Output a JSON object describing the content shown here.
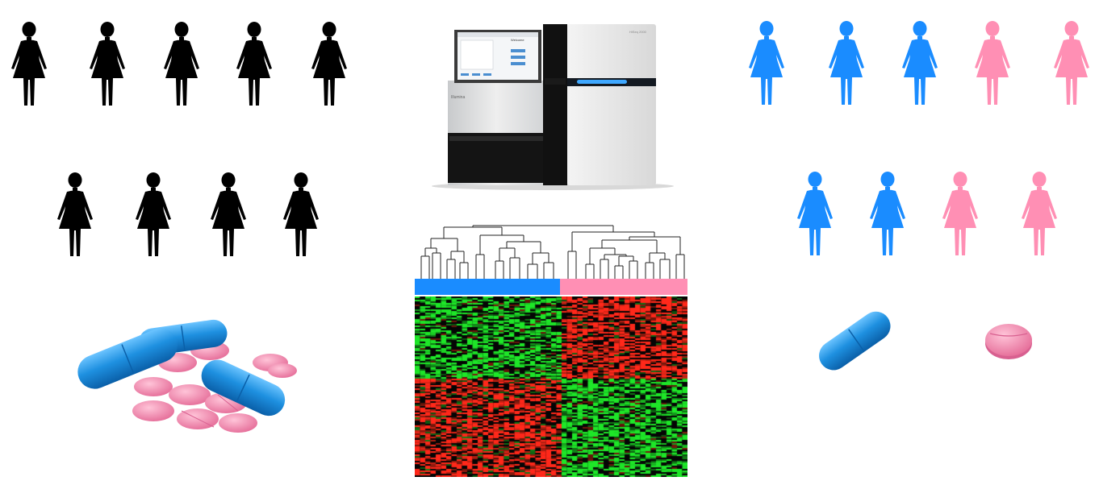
{
  "colors": {
    "untreated": "#000000",
    "group_a": "#1a8cff",
    "group_b": "#ff8fb4",
    "capsule": "#1e90e0",
    "tablet": "#f07ea6",
    "heat_up": "#ff2a1a",
    "heat_down": "#1fdc2a",
    "heat_mid": "#000000"
  },
  "population": {
    "row1_count": 5,
    "row2_count": 4,
    "icon": "woman-figure-icon"
  },
  "stratified": {
    "row1": [
      "group_a",
      "group_a",
      "group_a",
      "group_b",
      "group_b"
    ],
    "row2": [
      "group_a",
      "group_a",
      "group_b",
      "group_b"
    ],
    "icon": "woman-figure-icon"
  },
  "sequencer": {
    "brand_text": "Illumina",
    "model_text": "HiSeq 2000",
    "screen_title": "Welcome"
  },
  "heatmap": {
    "left_cluster": "group_a",
    "right_cluster": "group_b"
  },
  "drugs": {
    "mixed_pile": [
      "capsule-icon",
      "tablet-icon"
    ],
    "separated": [
      "capsule-icon",
      "tablet-icon"
    ]
  }
}
